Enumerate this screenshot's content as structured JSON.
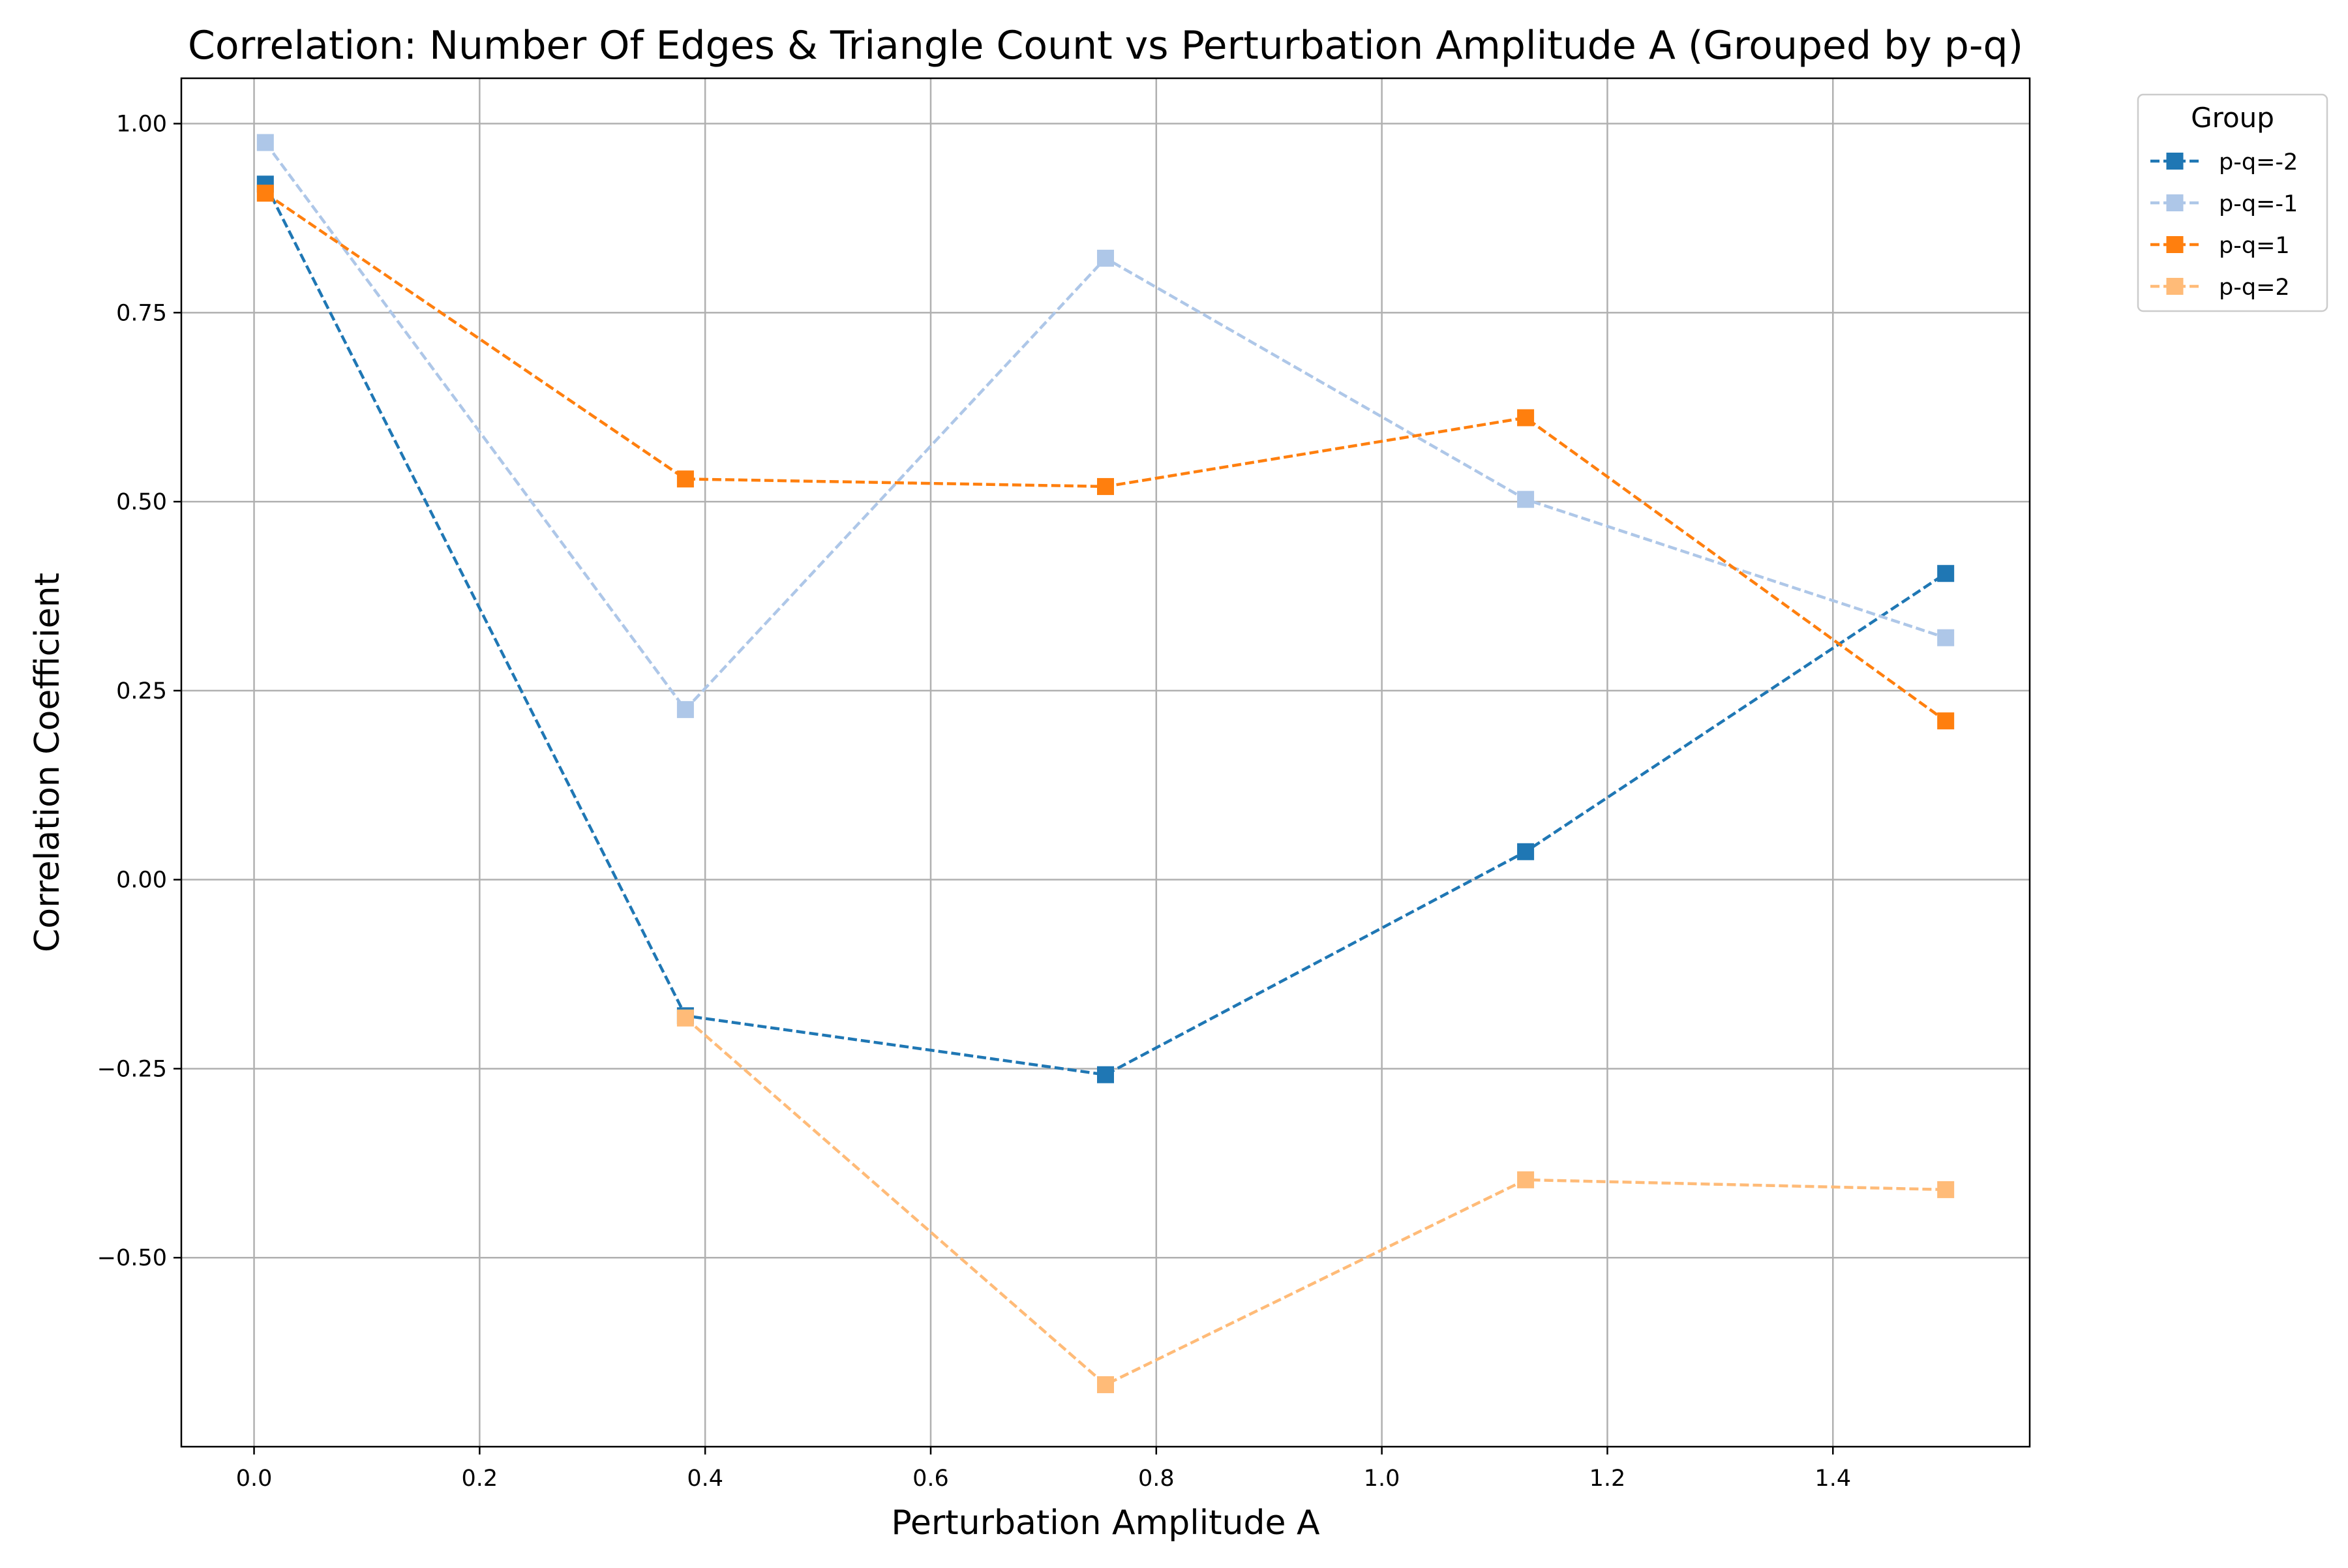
{
  "chart_data": {
    "type": "line",
    "title": "Correlation: Number Of Edges & Triangle Count vs Perturbation Amplitude A (Grouped by p-q)",
    "xlabel": "Perturbation Amplitude A",
    "ylabel": "Correlation Coefficient",
    "xlim": [
      -0.0645,
      1.5745
    ],
    "ylim": [
      -0.75,
      1.06
    ],
    "x_ticks": [
      0.0,
      0.2,
      0.4,
      0.6,
      0.8,
      1.0,
      1.2,
      1.4
    ],
    "x_tick_labels": [
      "0.0",
      "0.2",
      "0.4",
      "0.6",
      "0.8",
      "1.0",
      "1.2",
      "1.4"
    ],
    "y_ticks": [
      -0.5,
      -0.25,
      0.0,
      0.25,
      0.5,
      0.75,
      1.0
    ],
    "y_tick_labels": [
      "−0.50",
      "−0.25",
      "0.00",
      "0.25",
      "0.50",
      "0.75",
      "1.00"
    ],
    "grid": true,
    "legend": {
      "title": "Group",
      "placement": "upper-right-outside"
    },
    "x": [
      0.01,
      0.3825,
      0.755,
      1.1275,
      1.5
    ],
    "series": [
      {
        "name": "p-q=-2",
        "color": "#1f77b4",
        "values": [
          0.92,
          -0.18,
          -0.258,
          0.037,
          0.405
        ]
      },
      {
        "name": "p-q=-1",
        "color": "#aec7e8",
        "values": [
          0.975,
          0.225,
          0.822,
          0.503,
          0.32
        ]
      },
      {
        "name": "p-q=1",
        "color": "#ff7f0e",
        "values": [
          0.908,
          0.53,
          0.52,
          0.611,
          0.21
        ]
      },
      {
        "name": "p-q=2",
        "color": "#ffbb78",
        "values": [
          null,
          -0.183,
          -0.668,
          -0.397,
          -0.41
        ]
      }
    ]
  }
}
